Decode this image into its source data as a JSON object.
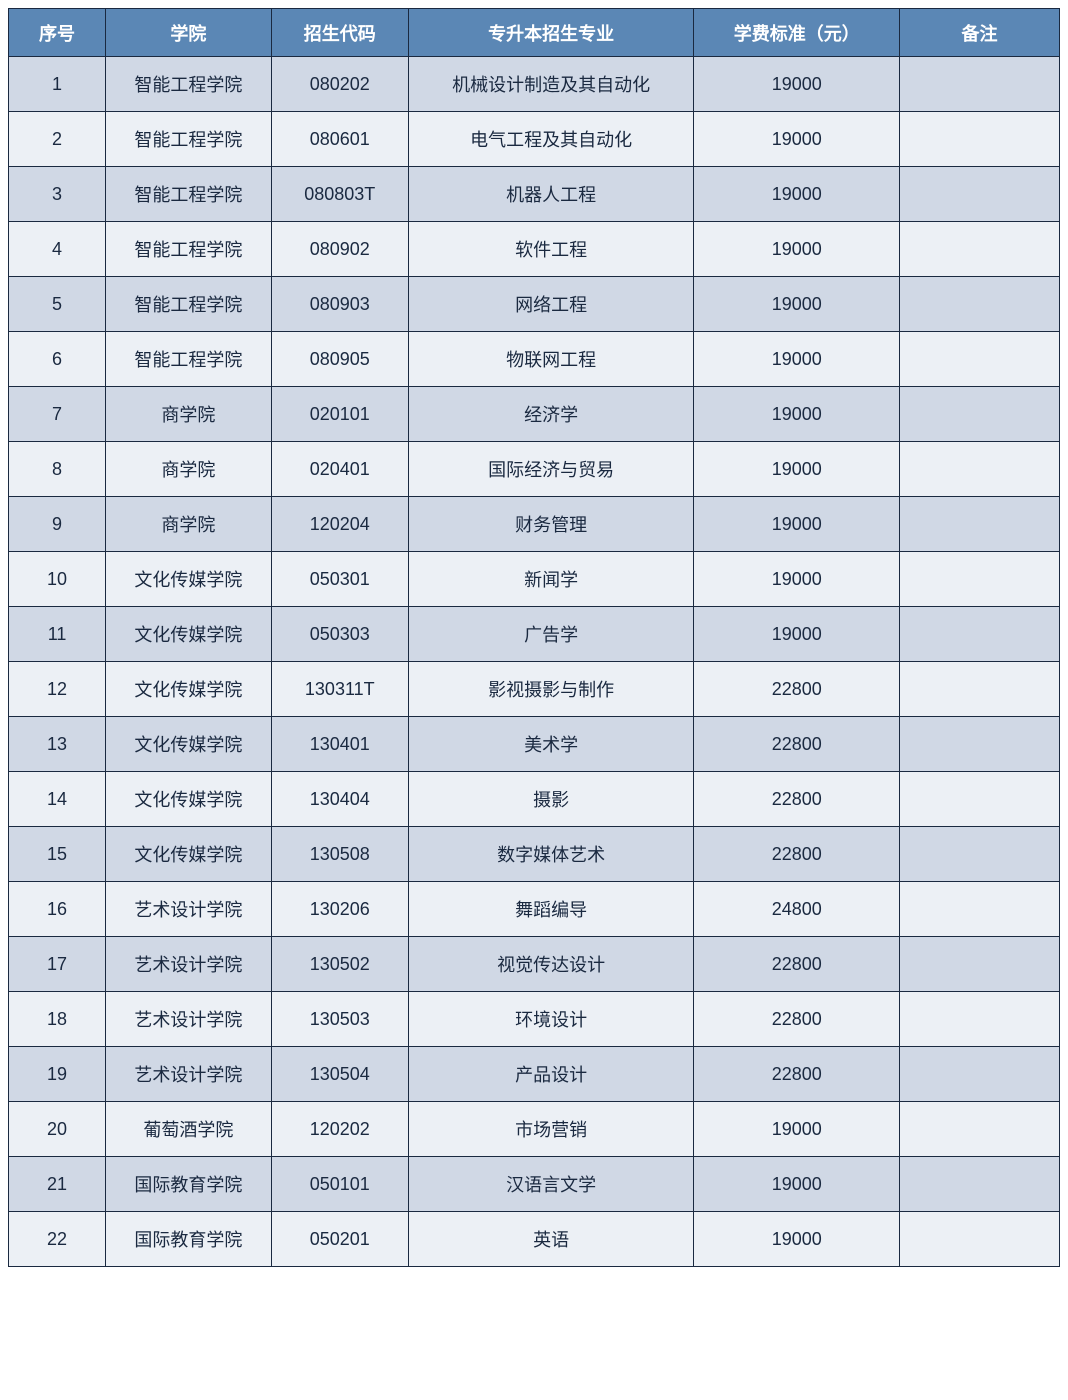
{
  "table": {
    "type": "table",
    "header_bg_color": "#5b87b5",
    "header_text_color": "#ffffff",
    "odd_row_bg_color": "#d0d8e5",
    "even_row_bg_color": "#ecf0f5",
    "border_color": "#1a2940",
    "text_color": "#1a2940",
    "font_size": 18,
    "header_font_weight": "bold",
    "columns": [
      {
        "key": "seq",
        "label": "序号",
        "width": "8.5%"
      },
      {
        "key": "college",
        "label": "学院",
        "width": "14.5%"
      },
      {
        "key": "code",
        "label": "招生代码",
        "width": "12%"
      },
      {
        "key": "major",
        "label": "专升本招生专业",
        "width": "25%"
      },
      {
        "key": "fee",
        "label": "学费标准（元）",
        "width": "18%"
      },
      {
        "key": "note",
        "label": "备注",
        "width": "14%"
      }
    ],
    "rows": [
      {
        "seq": "1",
        "college": "智能工程学院",
        "code": "080202",
        "major": "机械设计制造及其自动化",
        "fee": "19000",
        "note": ""
      },
      {
        "seq": "2",
        "college": "智能工程学院",
        "code": "080601",
        "major": "电气工程及其自动化",
        "fee": "19000",
        "note": ""
      },
      {
        "seq": "3",
        "college": "智能工程学院",
        "code": "080803T",
        "major": "机器人工程",
        "fee": "19000",
        "note": ""
      },
      {
        "seq": "4",
        "college": "智能工程学院",
        "code": "080902",
        "major": "软件工程",
        "fee": "19000",
        "note": ""
      },
      {
        "seq": "5",
        "college": "智能工程学院",
        "code": "080903",
        "major": "网络工程",
        "fee": "19000",
        "note": ""
      },
      {
        "seq": "6",
        "college": "智能工程学院",
        "code": "080905",
        "major": "物联网工程",
        "fee": "19000",
        "note": ""
      },
      {
        "seq": "7",
        "college": "商学院",
        "code": "020101",
        "major": "经济学",
        "fee": "19000",
        "note": ""
      },
      {
        "seq": "8",
        "college": "商学院",
        "code": "020401",
        "major": "国际经济与贸易",
        "fee": "19000",
        "note": ""
      },
      {
        "seq": "9",
        "college": "商学院",
        "code": "120204",
        "major": "财务管理",
        "fee": "19000",
        "note": ""
      },
      {
        "seq": "10",
        "college": "文化传媒学院",
        "code": "050301",
        "major": "新闻学",
        "fee": "19000",
        "note": ""
      },
      {
        "seq": "11",
        "college": "文化传媒学院",
        "code": "050303",
        "major": "广告学",
        "fee": "19000",
        "note": ""
      },
      {
        "seq": "12",
        "college": "文化传媒学院",
        "code": "130311T",
        "major": "影视摄影与制作",
        "fee": "22800",
        "note": ""
      },
      {
        "seq": "13",
        "college": "文化传媒学院",
        "code": "130401",
        "major": "美术学",
        "fee": "22800",
        "note": ""
      },
      {
        "seq": "14",
        "college": "文化传媒学院",
        "code": "130404",
        "major": "摄影",
        "fee": "22800",
        "note": ""
      },
      {
        "seq": "15",
        "college": "文化传媒学院",
        "code": "130508",
        "major": "数字媒体艺术",
        "fee": "22800",
        "note": ""
      },
      {
        "seq": "16",
        "college": "艺术设计学院",
        "code": "130206",
        "major": "舞蹈编导",
        "fee": "24800",
        "note": ""
      },
      {
        "seq": "17",
        "college": "艺术设计学院",
        "code": "130502",
        "major": "视觉传达设计",
        "fee": "22800",
        "note": ""
      },
      {
        "seq": "18",
        "college": "艺术设计学院",
        "code": "130503",
        "major": "环境设计",
        "fee": "22800",
        "note": ""
      },
      {
        "seq": "19",
        "college": "艺术设计学院",
        "code": "130504",
        "major": "产品设计",
        "fee": "22800",
        "note": ""
      },
      {
        "seq": "20",
        "college": "葡萄酒学院",
        "code": "120202",
        "major": "市场营销",
        "fee": "19000",
        "note": ""
      },
      {
        "seq": "21",
        "college": "国际教育学院",
        "code": "050101",
        "major": "汉语言文学",
        "fee": "19000",
        "note": ""
      },
      {
        "seq": "22",
        "college": "国际教育学院",
        "code": "050201",
        "major": "英语",
        "fee": "19000",
        "note": ""
      }
    ]
  }
}
